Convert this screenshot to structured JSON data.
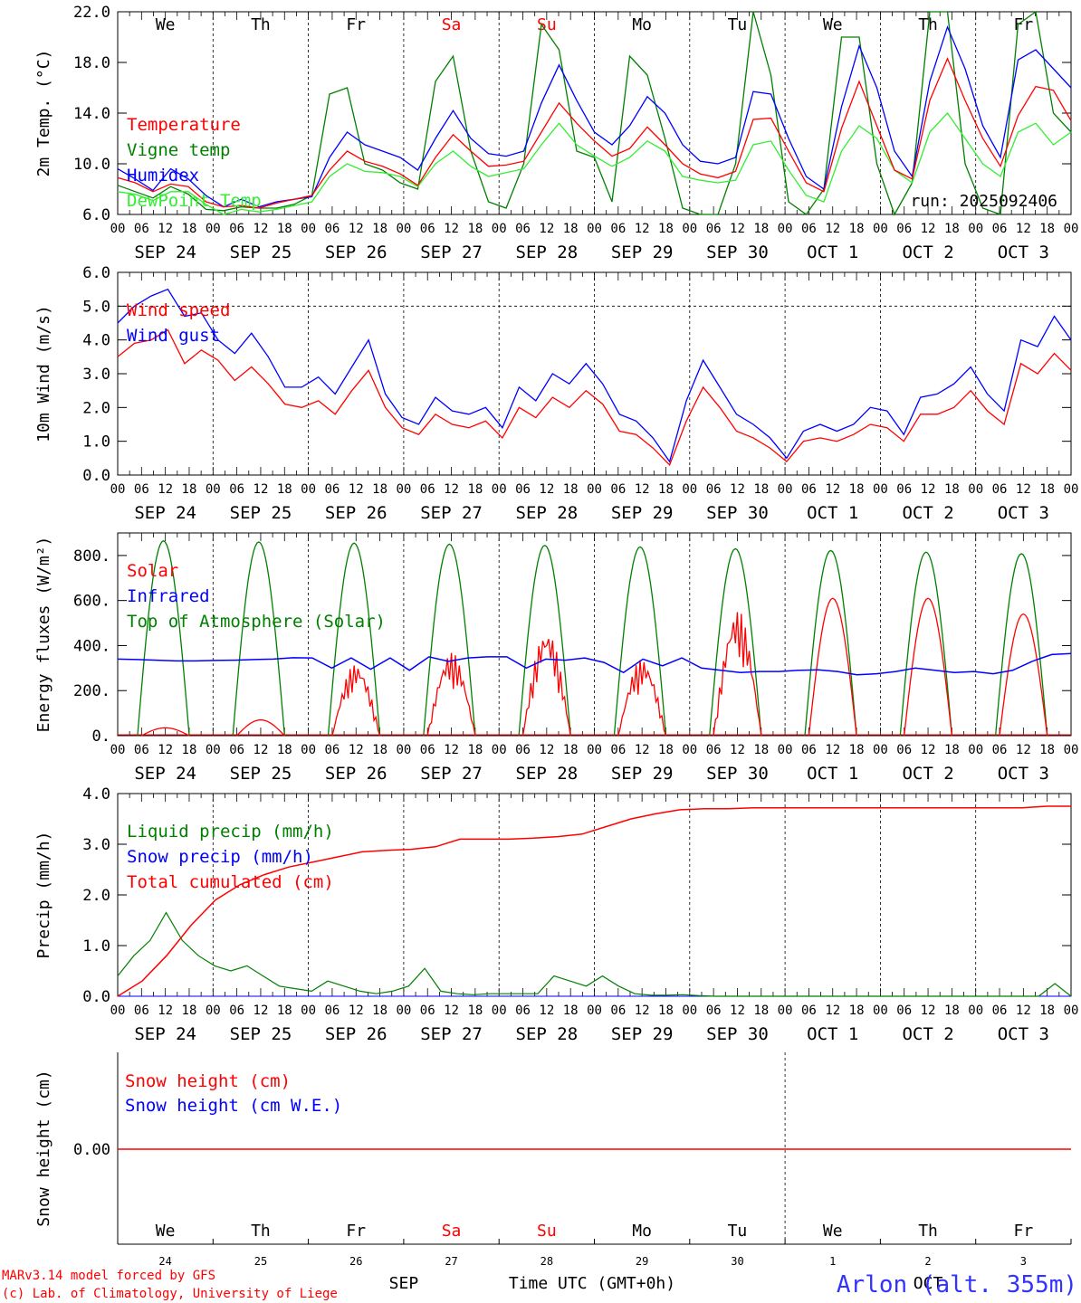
{
  "station": "Arlon (alt. 355m)",
  "credits": [
    "MARv3.14 model forced by GFS",
    "(c) Lab. of Climatology, University of Liege"
  ],
  "xaxis_title": "Time UTC (GMT+0h)",
  "run_label": "run: 2025092406",
  "hour_ticks": [
    "00",
    "06",
    "12",
    "18"
  ],
  "date_labels": [
    "SEP 24",
    "SEP 25",
    "SEP 26",
    "SEP 27",
    "SEP 28",
    "SEP 29",
    "SEP 30",
    "OCT  1",
    "OCT  2",
    "OCT  3"
  ],
  "days": [
    {
      "wd": "We",
      "num": "24",
      "weekend": false
    },
    {
      "wd": "Th",
      "num": "25",
      "weekend": false
    },
    {
      "wd": "Fr",
      "num": "26",
      "weekend": false
    },
    {
      "wd": "Sa",
      "num": "27",
      "weekend": true
    },
    {
      "wd": "Su",
      "num": "28",
      "weekend": true
    },
    {
      "wd": "Mo",
      "num": "29",
      "weekend": false
    },
    {
      "wd": "Tu",
      "num": "30",
      "weekend": false
    },
    {
      "wd": "We",
      "num": "1",
      "weekend": false
    },
    {
      "wd": "Th",
      "num": "2",
      "weekend": false
    },
    {
      "wd": "Fr",
      "num": "3",
      "weekend": false
    }
  ],
  "snow_month_labels": [
    {
      "label": "SEP",
      "day_index": 3
    },
    {
      "label": "OCT",
      "day_index": 8.5
    }
  ],
  "colors": {
    "red": "#ff0000",
    "green": "#008000",
    "blue": "#0000ff",
    "light_green": "#33ee33",
    "station": "#3333ff"
  },
  "chart_data": [
    {
      "type": "line",
      "ylabel": "2m Temp. (°C)",
      "ylim": [
        6,
        22
      ],
      "yticks": [
        6,
        10,
        14,
        18,
        22
      ],
      "ytick_labels": [
        "6.0",
        "10.0",
        "14.0",
        "18.0",
        "22.0"
      ],
      "legend": [
        "Temperature",
        "Vigne temp",
        "Humidex",
        "DewPoint Temp"
      ],
      "series": [
        {
          "name": "Temperature",
          "color": "red",
          "values": [
            8.9,
            8.5,
            7.8,
            8.4,
            8.2,
            7.0,
            6.6,
            6.7,
            6.5,
            6.9,
            7.2,
            7.5,
            9.5,
            11.0,
            10.2,
            9.8,
            9.2,
            8.3,
            10.5,
            12.3,
            11.0,
            9.8,
            9.9,
            10.2,
            12.5,
            14.8,
            13.2,
            11.8,
            10.6,
            11.2,
            12.9,
            11.5,
            10.0,
            9.2,
            8.9,
            9.4,
            13.5,
            13.6,
            11.0,
            8.5,
            7.8,
            12.8,
            16.5,
            13.0,
            9.5,
            8.8,
            15.0,
            18.3,
            15.0,
            12.0,
            9.8,
            13.8,
            16.1,
            15.8,
            13.4
          ]
        },
        {
          "name": "Vigne temp",
          "color": "green",
          "values": [
            8.3,
            7.8,
            7.3,
            8.2,
            7.6,
            6.4,
            6.3,
            6.6,
            6.5,
            6.5,
            6.8,
            7.5,
            15.5,
            16.0,
            10.0,
            9.5,
            8.5,
            8.0,
            16.5,
            18.5,
            11.0,
            7.0,
            6.5,
            10.0,
            21.0,
            19.0,
            11.0,
            10.5,
            7.0,
            18.5,
            17.0,
            12.0,
            6.5,
            5.5,
            6.0,
            10.0,
            22.0,
            17.0,
            7.0,
            5.5,
            8.0,
            20.0,
            20.0,
            10.0,
            5.5,
            8.5,
            23.0,
            22.0,
            10.0,
            6.5,
            6.0,
            21.0,
            22.0,
            14.0,
            12.5
          ]
        },
        {
          "name": "Humidex",
          "color": "blue",
          "values": [
            9.6,
            8.8,
            7.9,
            9.6,
            8.8,
            7.5,
            6.6,
            7.2,
            6.6,
            7.0,
            7.2,
            7.4,
            10.5,
            12.5,
            11.5,
            11.0,
            10.5,
            9.5,
            12.0,
            14.2,
            12.0,
            10.8,
            10.6,
            11.0,
            14.8,
            17.8,
            15.0,
            12.5,
            11.5,
            13.0,
            15.3,
            14.0,
            11.5,
            10.2,
            10.0,
            10.5,
            15.7,
            15.5,
            12.0,
            9.0,
            8.0,
            14.5,
            19.3,
            16.0,
            11.0,
            9.0,
            16.5,
            20.8,
            17.5,
            13.0,
            10.5,
            18.2,
            19.0,
            17.5,
            16.0
          ]
        },
        {
          "name": "DewPoint Temp",
          "color": "light_green",
          "values": [
            7.8,
            7.6,
            7.1,
            7.8,
            7.8,
            6.8,
            6.0,
            6.4,
            6.2,
            6.4,
            6.7,
            7.0,
            9.0,
            10.0,
            9.4,
            9.3,
            9.0,
            8.2,
            10.0,
            11.0,
            9.8,
            9.0,
            9.3,
            9.6,
            11.5,
            13.2,
            11.5,
            10.6,
            9.8,
            10.5,
            11.8,
            11.0,
            9.0,
            8.7,
            8.5,
            8.7,
            11.5,
            11.8,
            9.5,
            7.5,
            7.0,
            11.0,
            13.0,
            12.0,
            9.5,
            8.5,
            12.5,
            14.0,
            12.0,
            10.0,
            9.0,
            12.5,
            13.2,
            11.5,
            12.5
          ]
        }
      ]
    },
    {
      "type": "line",
      "ylabel": "10m Wind (m/s)",
      "ylim": [
        0,
        6
      ],
      "yticks": [
        0,
        1,
        2,
        3,
        4,
        5,
        6
      ],
      "ytick_labels": [
        "0.0",
        "1.0",
        "2.0",
        "3.0",
        "4.0",
        "5.0",
        "6.0"
      ],
      "legend": [
        "Wind speed",
        "Wind gust"
      ],
      "series": [
        {
          "name": "Wind speed",
          "color": "red",
          "values": [
            3.5,
            3.9,
            4.0,
            4.3,
            3.3,
            3.7,
            3.4,
            2.8,
            3.2,
            2.7,
            2.1,
            2.0,
            2.2,
            1.8,
            2.5,
            3.1,
            2.0,
            1.4,
            1.2,
            1.8,
            1.5,
            1.4,
            1.6,
            1.1,
            2.0,
            1.7,
            2.3,
            2.0,
            2.5,
            2.1,
            1.3,
            1.2,
            0.8,
            0.3,
            1.6,
            2.6,
            2.0,
            1.3,
            1.1,
            0.8,
            0.4,
            1.0,
            1.1,
            1.0,
            1.2,
            1.5,
            1.4,
            1.0,
            1.8,
            1.8,
            2.0,
            2.5,
            1.9,
            1.5,
            3.3,
            3.0,
            3.6,
            3.1
          ]
        },
        {
          "name": "Wind gust",
          "color": "blue",
          "values": [
            4.5,
            5.0,
            5.3,
            5.5,
            4.7,
            4.8,
            4.0,
            3.6,
            4.2,
            3.5,
            2.6,
            2.6,
            2.9,
            2.4,
            3.2,
            4.0,
            2.4,
            1.7,
            1.5,
            2.3,
            1.9,
            1.8,
            2.0,
            1.4,
            2.6,
            2.2,
            3.0,
            2.7,
            3.3,
            2.7,
            1.8,
            1.6,
            1.1,
            0.4,
            2.2,
            3.4,
            2.6,
            1.8,
            1.5,
            1.1,
            0.5,
            1.3,
            1.5,
            1.3,
            1.5,
            2.0,
            1.9,
            1.2,
            2.3,
            2.4,
            2.7,
            3.2,
            2.4,
            1.9,
            4.0,
            3.8,
            4.7,
            4.0
          ]
        }
      ]
    },
    {
      "type": "line",
      "ylabel": "Energy fluxes (W/m²)",
      "ylim": [
        0,
        900
      ],
      "yticks": [
        0,
        200,
        400,
        600,
        800
      ],
      "ytick_labels": [
        "0.",
        "200.",
        "400.",
        "600.",
        "800."
      ],
      "legend": [
        "Solar",
        "Infrared",
        "Top of Atmosphere (Solar)"
      ],
      "series": [
        {
          "name": "Top of Atmosphere (Solar)",
          "color": "green",
          "daily_peak": [
            865,
            860,
            855,
            850,
            845,
            838,
            830,
            822,
            815,
            808
          ]
        },
        {
          "name": "Solar",
          "color": "red",
          "daily_peak": [
            35,
            70,
            320,
            370,
            470,
            340,
            560,
            610,
            610,
            540
          ]
        },
        {
          "name": "Infrared",
          "color": "blue",
          "values": [
            340,
            338,
            335,
            332,
            332,
            334,
            335,
            338,
            340,
            346,
            345,
            300,
            345,
            295,
            345,
            290,
            350,
            330,
            345,
            350,
            350,
            300,
            340,
            335,
            345,
            325,
            280,
            340,
            310,
            345,
            300,
            290,
            280,
            285,
            285,
            290,
            292,
            285,
            270,
            275,
            285,
            300,
            290,
            280,
            285,
            275,
            290,
            330,
            360,
            365
          ]
        }
      ]
    },
    {
      "type": "line",
      "ylabel": "Precip (mm/h)",
      "ylim": [
        0,
        4
      ],
      "yticks": [
        0,
        1,
        2,
        3,
        4
      ],
      "ytick_labels": [
        "0.0",
        "1.0",
        "2.0",
        "3.0",
        "4.0"
      ],
      "legend": [
        "Liquid precip (mm/h)",
        "Snow precip (mm/h)",
        "Total cumulated (cm)"
      ],
      "series": [
        {
          "name": "Liquid precip (mm/h)",
          "color": "green",
          "values": [
            0.4,
            0.8,
            1.1,
            1.65,
            1.1,
            0.8,
            0.6,
            0.5,
            0.6,
            0.4,
            0.2,
            0.15,
            0.1,
            0.3,
            0.2,
            0.1,
            0.05,
            0.1,
            0.2,
            0.55,
            0.1,
            0.05,
            0.03,
            0.05,
            0.05,
            0.05,
            0.05,
            0.4,
            0.3,
            0.2,
            0.4,
            0.2,
            0.05,
            0.02,
            0.02,
            0.03,
            0.01,
            0.0,
            0.0,
            0.0,
            0.0,
            0.0,
            0.0,
            0.0,
            0.0,
            0.0,
            0.0,
            0.0,
            0.0,
            0.0,
            0.0,
            0.0,
            0.0,
            0.0,
            0.0,
            0.0,
            0.0,
            0.0,
            0.25,
            0.0
          ]
        },
        {
          "name": "Snow precip (mm/h)",
          "color": "blue",
          "values": [
            0,
            0,
            0,
            0,
            0,
            0,
            0,
            0,
            0,
            0
          ]
        },
        {
          "name": "Total cumulated (cm)",
          "color": "red",
          "values": [
            0.0,
            0.3,
            0.8,
            1.4,
            1.9,
            2.2,
            2.4,
            2.55,
            2.65,
            2.75,
            2.85,
            2.88,
            2.9,
            2.95,
            3.1,
            3.1,
            3.1,
            3.12,
            3.15,
            3.2,
            3.35,
            3.5,
            3.6,
            3.68,
            3.7,
            3.7,
            3.72,
            3.72,
            3.72,
            3.72,
            3.72,
            3.72,
            3.72,
            3.72,
            3.72,
            3.72,
            3.72,
            3.72,
            3.75,
            3.75
          ]
        }
      ]
    },
    {
      "type": "line",
      "ylabel": "Snow height (cm)",
      "ytick_labels": [
        "0.00"
      ],
      "legend": [
        "Snow height (cm)",
        "Snow height (cm W.E.)"
      ],
      "series": [
        {
          "name": "Snow height (cm)",
          "color": "red",
          "values": [
            0,
            0
          ]
        },
        {
          "name": "Snow height (cm W.E.)",
          "color": "blue",
          "values": [
            0,
            0
          ]
        }
      ]
    }
  ]
}
